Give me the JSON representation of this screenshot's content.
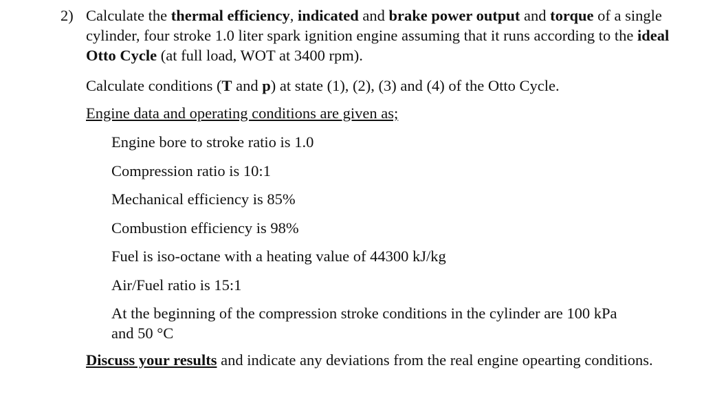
{
  "question": {
    "number": "2)",
    "p1_a": "Calculate the ",
    "p1_b": "thermal efficiency",
    "p1_c": ", ",
    "p1_d": "indicated",
    "p1_e": " and ",
    "p1_f": "brake power output",
    "p1_g": " and ",
    "p1_h": "torque",
    "p1_i": " of a single cylinder, four stroke 1.0 liter spark ignition engine assuming that it runs according to the ",
    "p1_j": "ideal Otto Cycle",
    "p1_k": " (at full load, WOT at 3400 rpm)."
  },
  "calc": {
    "a": "Calculate conditions (",
    "b": "T",
    "c": " and ",
    "d": "p",
    "e": ") at state (1), (2), (3) and (4) of the Otto Cycle."
  },
  "engine_heading": "Engine data and operating conditions are given as;",
  "items": [
    "Engine bore to stroke ratio is  1.0",
    "Compression ratio is 10:1",
    "Mechanical efficiency is 85%",
    "Combustion efficiency is 98%",
    "Fuel is iso-octane with a heating value of 44300 kJ/kg",
    "Air/Fuel ratio is 15:1",
    "At the beginning of the compression stroke conditions in the cylinder are 100 kPa and 50 °C"
  ],
  "discuss": {
    "bold": "Discuss your results",
    "rest": " and indicate any deviations from the real engine opearting conditions."
  }
}
